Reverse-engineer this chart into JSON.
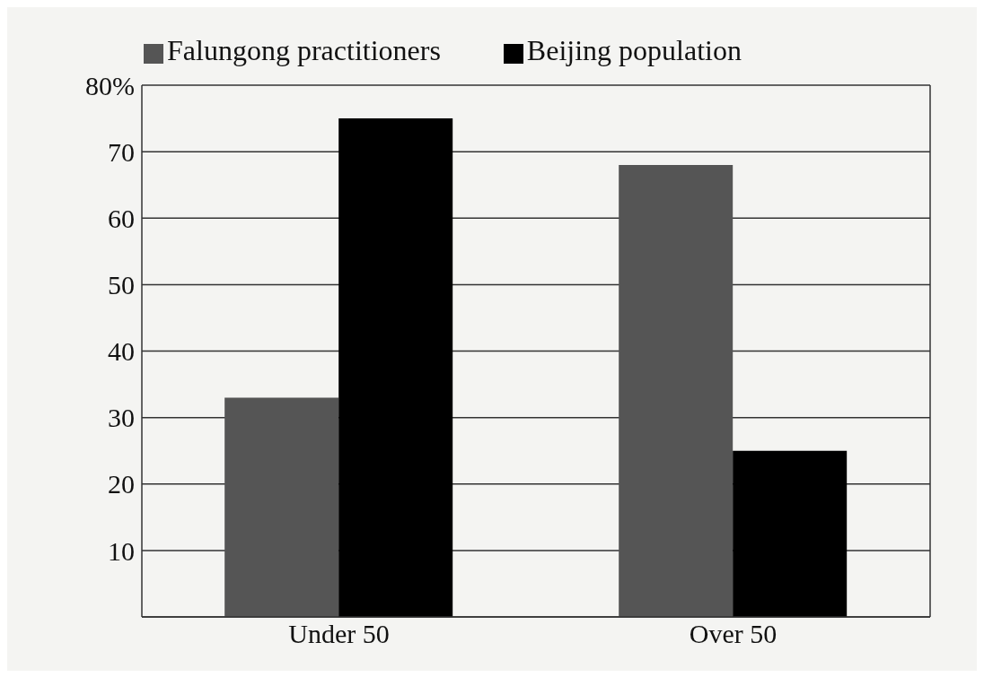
{
  "chart_data": {
    "type": "bar",
    "categories": [
      "Under 50",
      "Over 50"
    ],
    "series": [
      {
        "name": "Falungong practitioners",
        "color": "#555555",
        "values": [
          33,
          68
        ]
      },
      {
        "name": "Beijing population",
        "color": "#000000",
        "values": [
          75,
          25
        ]
      }
    ],
    "ylim": [
      0,
      80
    ],
    "yticks": [
      {
        "value": 0,
        "label": null
      },
      10,
      20,
      30,
      40,
      50,
      60,
      70,
      {
        "value": 80,
        "label": "80%"
      }
    ],
    "grid": "y",
    "legend": "top"
  }
}
